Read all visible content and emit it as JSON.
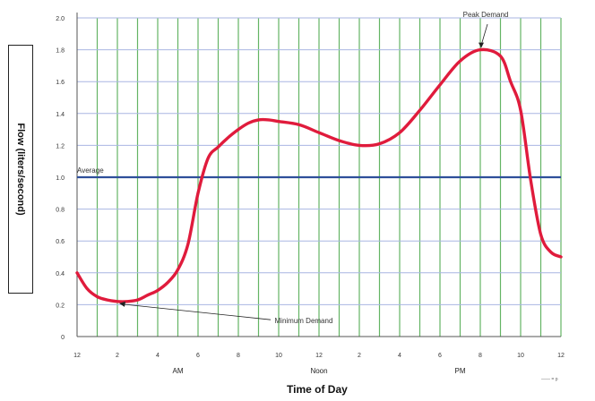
{
  "chart_data": {
    "type": "line",
    "xlabel": "Time of Day",
    "ylabel": "Flow (liters/second)",
    "x_ticks": [
      "12",
      "2",
      "4",
      "6",
      "8",
      "10",
      "12",
      "2",
      "4",
      "6",
      "8",
      "10",
      "12"
    ],
    "y_ticks": [
      "0",
      "0.2",
      "0.4",
      "0.6",
      "0.8",
      "1.0",
      "1.2",
      "1.4",
      "1.6",
      "1.8",
      "2.0"
    ],
    "ylim": [
      0,
      2.0
    ],
    "xlim": [
      0,
      24
    ],
    "grid": true,
    "periods": [
      {
        "label": "AM",
        "x": 5
      },
      {
        "label": "Noon",
        "x": 12
      },
      {
        "label": "PM",
        "x": 19
      }
    ],
    "series": [
      {
        "color": "#e01b3c",
        "x": [
          0,
          0.5,
          1,
          1.5,
          2,
          2.5,
          3,
          3.5,
          4,
          4.5,
          5,
          5.5,
          6,
          6.5,
          7,
          7.5,
          8,
          8.5,
          9,
          9.5,
          10,
          11,
          12,
          13,
          14,
          15,
          16,
          17,
          18,
          19,
          20,
          21,
          21.5,
          22,
          22.5,
          23,
          23.5,
          24
        ],
        "y": [
          0.4,
          0.3,
          0.25,
          0.23,
          0.22,
          0.22,
          0.23,
          0.26,
          0.29,
          0.34,
          0.42,
          0.58,
          0.9,
          1.12,
          1.19,
          1.25,
          1.3,
          1.34,
          1.36,
          1.36,
          1.35,
          1.33,
          1.28,
          1.23,
          1.2,
          1.21,
          1.28,
          1.42,
          1.58,
          1.73,
          1.8,
          1.76,
          1.6,
          1.42,
          0.98,
          0.64,
          0.53,
          0.5
        ]
      }
    ],
    "reference_lines": [
      {
        "label": "Average",
        "y": 1.0,
        "color": "#2e4f9a"
      }
    ],
    "annotations": [
      {
        "text": "Peak Demand",
        "x": 20,
        "y": 1.8
      },
      {
        "text": "Minimum Demand",
        "x": 2,
        "y": 0.22
      }
    ],
    "legend_fragment": "—— = p"
  }
}
